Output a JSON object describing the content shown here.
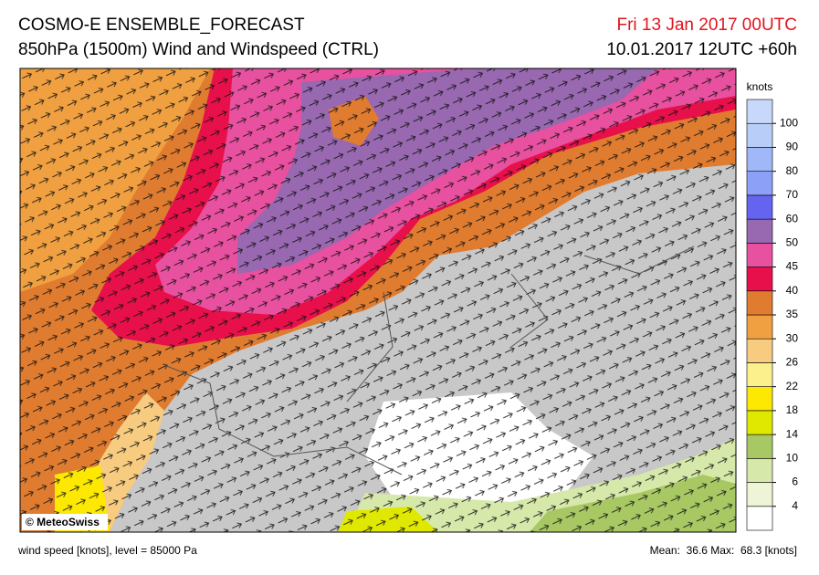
{
  "header": {
    "title": "COSMO-E ENSEMBLE_FORECAST",
    "subtitle": "850hPa (1500m) Wind and Windspeed (CTRL)",
    "valid_time": "Fri 13 Jan 2017 00UTC",
    "run_time": "10.01.2017 12UTC +60h"
  },
  "map": {
    "copyright": "© MeteoSwiss"
  },
  "colorbar": {
    "unit": "knots",
    "levels": [
      4,
      6,
      10,
      14,
      18,
      22,
      26,
      30,
      35,
      40,
      45,
      50,
      60,
      70,
      80,
      90,
      100
    ],
    "colors": [
      "#ffffff",
      "#eef5d6",
      "#d6e9aa",
      "#a8c864",
      "#e0e800",
      "#fce800",
      "#fcf08c",
      "#f8cc80",
      "#f0a040",
      "#e07c30",
      "#e8104a",
      "#e850a0",
      "#9868b0",
      "#6464f0",
      "#8ca0f8",
      "#a0b8f8",
      "#b8cef8",
      "#c8d8fa"
    ]
  },
  "footer": {
    "left": "wind speed [knots], level = 85000 Pa",
    "stats": "Mean:  36.6 Max:  68.3 [knots]"
  }
}
